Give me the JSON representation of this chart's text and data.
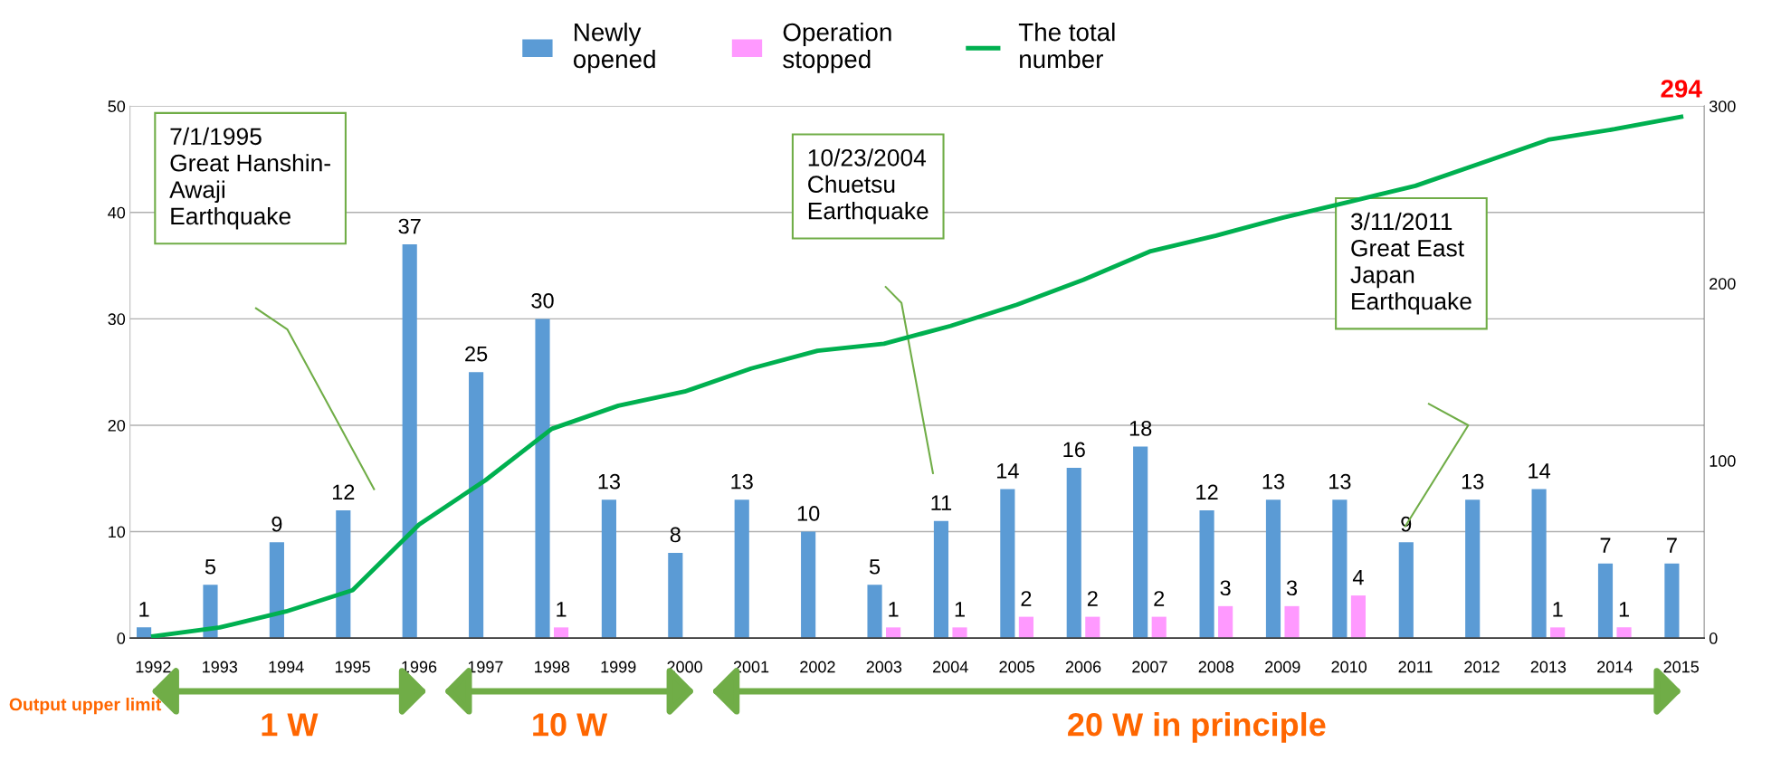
{
  "chart_data": {
    "type": "bar",
    "categories": [
      "1992",
      "1993",
      "1994",
      "1995",
      "1996",
      "1997",
      "1998",
      "1999",
      "2000",
      "2001",
      "2002",
      "2003",
      "2004",
      "2005",
      "2006",
      "2007",
      "2008",
      "2009",
      "2010",
      "2011",
      "2012",
      "2013",
      "2014",
      "2015"
    ],
    "series": [
      {
        "name": "Newly\nopened",
        "color": "#5b9bd5",
        "values": [
          1,
          5,
          9,
          12,
          37,
          25,
          30,
          13,
          8,
          13,
          10,
          5,
          11,
          14,
          16,
          18,
          12,
          13,
          13,
          9,
          13,
          14,
          7,
          7
        ],
        "value_labels": [
          "1",
          "5",
          "9",
          "12",
          "37",
          "25",
          "30",
          "13",
          "8",
          "13",
          "10",
          "5",
          "11",
          "14",
          "16",
          "18",
          "12",
          "13",
          "13",
          "9",
          "13",
          "14",
          "7",
          "7"
        ]
      },
      {
        "name": "Operation\nstopped",
        "color": "#ff99ff",
        "values": [
          0,
          0,
          0,
          0,
          0,
          0,
          1,
          0,
          0,
          0,
          0,
          1,
          1,
          2,
          2,
          2,
          3,
          3,
          4,
          0,
          0,
          1,
          1,
          0
        ],
        "value_labels": [
          null,
          null,
          null,
          null,
          null,
          null,
          "1",
          null,
          null,
          null,
          null,
          "1",
          "1",
          "2",
          "2",
          "2",
          "3",
          "3",
          "4",
          null,
          null,
          "1",
          "1",
          null
        ]
      },
      {
        "name": "The total\nnumber",
        "type": "line",
        "axis": "y2",
        "color": "#00b050",
        "values": [
          1,
          6,
          15,
          27,
          64,
          89,
          118,
          131,
          139,
          152,
          162,
          166,
          176,
          188,
          202,
          218,
          227,
          237,
          246,
          255,
          268,
          281,
          287,
          294
        ],
        "value_labels": [
          null,
          null,
          null,
          null,
          null,
          null,
          null,
          null,
          null,
          null,
          null,
          null,
          null,
          null,
          null,
          null,
          null,
          null,
          null,
          null,
          null,
          null,
          null,
          "294"
        ]
      }
    ],
    "ylim": [
      0,
      50
    ],
    "yticks": [
      0,
      10,
      20,
      30,
      40,
      50
    ],
    "y2lim": [
      0,
      300
    ],
    "y2ticks": [
      0,
      100,
      200,
      300
    ],
    "grid": "y",
    "legend": "top",
    "marker": "none",
    "annotations": [
      "7/1/1995\nGreat Hanshin-\nAwaji\nEarthquake",
      "10/23/2004\nChuetsu\nEarthquake",
      "3/11/2011\nGreat East\nJapan\nEarthquake",
      "Output upper limit",
      "1 W",
      "10 W",
      "20 W in principle"
    ]
  }
}
